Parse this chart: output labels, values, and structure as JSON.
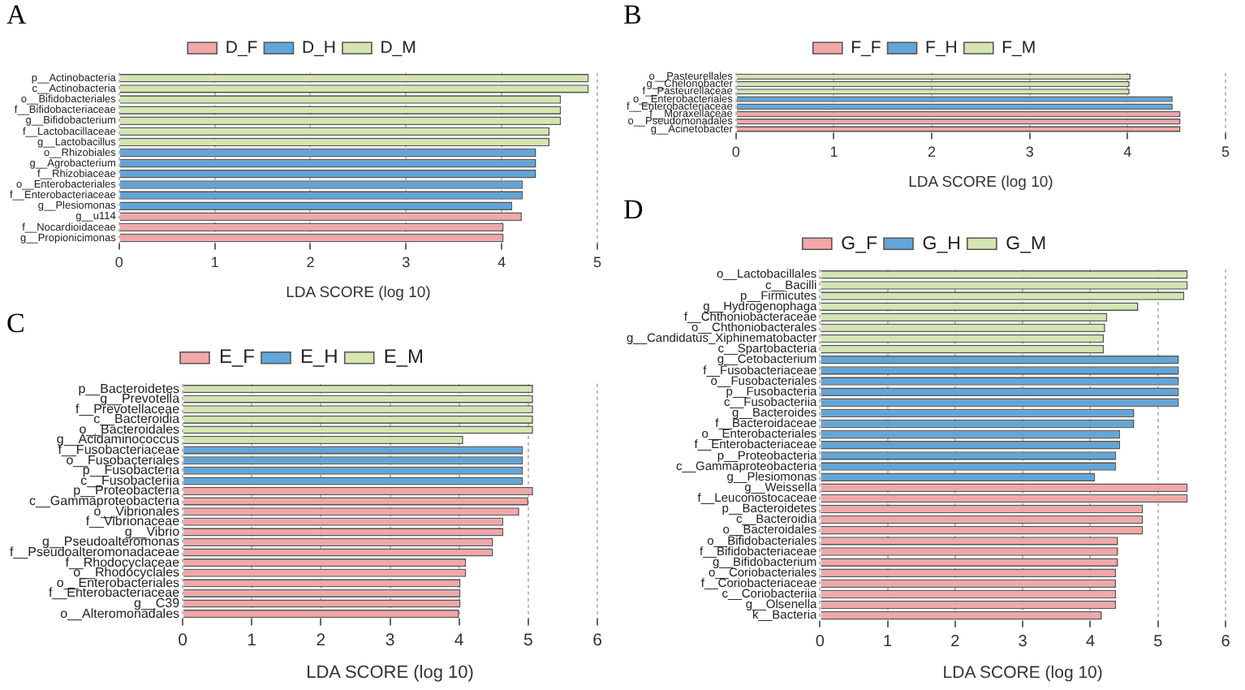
{
  "chart_data": [
    {
      "type": "bar",
      "orientation": "horizontal",
      "title": "A",
      "xlabel": "LDA SCORE (log 10)",
      "grid": "x",
      "legend": "top",
      "xlim": [
        0,
        5
      ],
      "xticks": [
        0,
        1,
        2,
        3,
        4,
        5
      ],
      "categories": [
        "p__Actinobacteria",
        "c__Actinobacteria",
        "o__Bifidobacteriales",
        "f__Bifidobacteriaceae",
        "g__Bifidobacterium",
        "f__Lactobacillaceae",
        "g__Lactobacillus",
        "o__Rhizobiales",
        "g__Agrobacterium",
        "f__Rhizobiaceae",
        "o__Enterobacteriales",
        "f__Enterobacteriaceae",
        "g__Plesiomonas",
        "g__u114",
        "f__Nocardioidaceae",
        "g__Propionicimonas"
      ],
      "series": [
        {
          "name": "D_F",
          "color": "#f2a7a8",
          "values": [
            null,
            null,
            null,
            null,
            null,
            null,
            null,
            null,
            null,
            null,
            null,
            null,
            null,
            4.21,
            4.02,
            4.02
          ]
        },
        {
          "name": "D_H",
          "color": "#62a5d8",
          "values": [
            null,
            null,
            null,
            null,
            null,
            null,
            null,
            4.36,
            4.36,
            4.36,
            4.22,
            4.22,
            4.11,
            null,
            null,
            null
          ]
        },
        {
          "name": "D_M",
          "color": "#d4e5b2",
          "values": [
            4.91,
            4.91,
            4.62,
            4.62,
            4.62,
            4.5,
            4.5,
            null,
            null,
            null,
            null,
            null,
            null,
            null,
            null,
            null
          ]
        }
      ]
    },
    {
      "type": "bar",
      "orientation": "horizontal",
      "title": "B",
      "xlabel": "LDA SCORE (log 10)",
      "grid": "x",
      "legend": "top",
      "xlim": [
        0,
        5
      ],
      "xticks": [
        0,
        1,
        2,
        3,
        4,
        5
      ],
      "categories": [
        "o__Pasteurellales",
        "g__Chelonobacter",
        "f__Pasteurellaceae",
        "o__Enterobacteriales",
        "f__Enterobacteriaceae",
        "f__Moraxellaceae",
        "o__Pseudomonadales",
        "g__Acinetobacter"
      ],
      "series": [
        {
          "name": "F_F",
          "color": "#f2a7a8",
          "values": [
            null,
            null,
            null,
            null,
            null,
            4.54,
            4.54,
            4.54
          ]
        },
        {
          "name": "F_H",
          "color": "#62a5d8",
          "values": [
            null,
            null,
            null,
            4.46,
            4.46,
            null,
            null,
            null
          ]
        },
        {
          "name": "F_M",
          "color": "#d4e5b2",
          "values": [
            4.03,
            4.02,
            4.02,
            null,
            null,
            null,
            null,
            null
          ]
        }
      ]
    },
    {
      "type": "bar",
      "orientation": "horizontal",
      "title": "C",
      "xlabel": "LDA SCORE (log 10)",
      "grid": "x",
      "legend": "top",
      "xlim": [
        0,
        6
      ],
      "xticks": [
        0,
        1,
        2,
        3,
        4,
        5,
        6
      ],
      "categories": [
        "p__Bacteroidetes",
        "g__Prevotella",
        "f__Prevotellaceae",
        "c__Bacteroidia",
        "o__Bacteroidales",
        "g__Acidaminococcus",
        "f__Fusobacteriaceae",
        "o__Fusobacteriales",
        "p__Fusobacteria",
        "c__Fusobacteriia",
        "p__Proteobacteria",
        "c__Gammaproteobacteria",
        "o__Vibrionales",
        "f__Vibrionaceae",
        "g__Vibrio",
        "g__Pseudoalteromonas",
        "f__Pseudoalteromonadaceae",
        "f__Rhodocyclaceae",
        "o__Rhodocyclales",
        "o__Enterobacteriales",
        "f__Enterobacteriaceae",
        "g__C39",
        "o__Alteromonadales"
      ],
      "series": [
        {
          "name": "E_F",
          "color": "#f2a7a8",
          "values": [
            null,
            null,
            null,
            null,
            null,
            null,
            null,
            null,
            null,
            null,
            5.07,
            5.0,
            4.87,
            4.64,
            4.64,
            4.49,
            4.49,
            4.1,
            4.1,
            4.02,
            4.02,
            4.02,
            4.0
          ]
        },
        {
          "name": "E_H",
          "color": "#62a5d8",
          "values": [
            null,
            null,
            null,
            null,
            null,
            null,
            4.92,
            4.92,
            4.92,
            4.92,
            null,
            null,
            null,
            null,
            null,
            null,
            null,
            null,
            null,
            null,
            null,
            null,
            null
          ]
        },
        {
          "name": "E_M",
          "color": "#d4e5b2",
          "values": [
            5.07,
            5.07,
            5.07,
            5.07,
            5.07,
            4.06,
            null,
            null,
            null,
            null,
            null,
            null,
            null,
            null,
            null,
            null,
            null,
            null,
            null,
            null,
            null,
            null,
            null
          ]
        }
      ]
    },
    {
      "type": "bar",
      "orientation": "horizontal",
      "title": "D",
      "xlabel": "LDA SCORE (log 10)",
      "grid": "x",
      "legend": "top",
      "xlim": [
        0,
        6
      ],
      "xticks": [
        0,
        1,
        2,
        3,
        4,
        5,
        6
      ],
      "categories": [
        "o__Lactobacillales",
        "c__Bacilli",
        "p__Firmicutes",
        "g__Hydrogenophaga",
        "f__Chthoniobacteraceae",
        "o__Chthoniobacterales",
        "g__Candidatus_Xiphinematobacter",
        "c__Spartobacteria",
        "g__Cetobacterium",
        "f__Fusobacteriaceae",
        "o__Fusobacteriales",
        "p__Fusobacteria",
        "c__Fusobacteriia",
        "g__Bacteroides",
        "f__Bacteroidaceae",
        "o__Enterobacteriales",
        "f__Enterobacteriaceae",
        "p__Proteobacteria",
        "c__Gammaproteobacteria",
        "g__Plesiomonas",
        "g__Weissella",
        "f__Leuconostocaceae",
        "p__Bacteroidetes",
        "c__Bacteroidia",
        "o__Bacteroidales",
        "o__Bifidobacteriales",
        "f__Bifidobacteriaceae",
        "g__Bifidobacterium",
        "o__Coriobacteriales",
        "f__Coriobacteriaceae",
        "c__Coriobacteriia",
        "g__Olsenella",
        "k__Bacteria"
      ],
      "series": [
        {
          "name": "G_F",
          "color": "#f2a7a8",
          "values": [
            null,
            null,
            null,
            null,
            null,
            null,
            null,
            null,
            null,
            null,
            null,
            null,
            null,
            null,
            null,
            null,
            null,
            null,
            null,
            null,
            5.44,
            5.44,
            4.78,
            4.78,
            4.78,
            4.41,
            4.41,
            4.41,
            4.38,
            4.38,
            4.38,
            4.38,
            4.17
          ]
        },
        {
          "name": "G_H",
          "color": "#62a5d8",
          "values": [
            null,
            null,
            null,
            null,
            null,
            null,
            null,
            null,
            5.31,
            5.31,
            5.31,
            5.31,
            5.31,
            4.65,
            4.65,
            4.44,
            4.44,
            4.38,
            4.38,
            4.07,
            null,
            null,
            null,
            null,
            null,
            null,
            null,
            null,
            null,
            null,
            null,
            null,
            null
          ]
        },
        {
          "name": "G_M",
          "color": "#d4e5b2",
          "values": [
            5.44,
            5.44,
            5.39,
            4.71,
            4.25,
            4.22,
            4.2,
            4.2,
            null,
            null,
            null,
            null,
            null,
            null,
            null,
            null,
            null,
            null,
            null,
            null,
            null,
            null,
            null,
            null,
            null,
            null,
            null,
            null,
            null,
            null,
            null,
            null,
            null
          ]
        }
      ]
    }
  ]
}
